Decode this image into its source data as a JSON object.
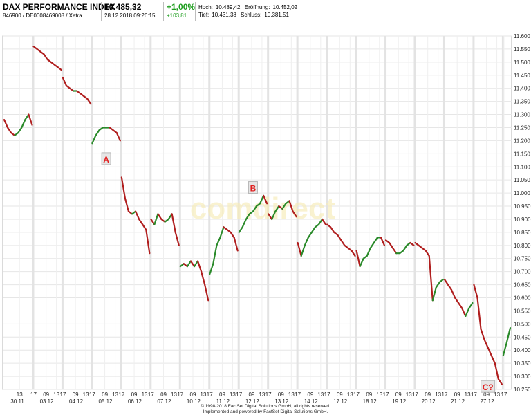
{
  "header": {
    "index_name": "DAX PERFORMANCE INDEX",
    "identifiers": "846900 / DE0008469008 / Xetra",
    "last_price": "10.485,32",
    "timestamp": "28.12.2018 09:26:15",
    "change_pct": "+1,00%",
    "change_abs": "+103,81",
    "high_label": "Hoch:",
    "high_value": "10.489,42",
    "open_label": "Eröffnung:",
    "open_value": "10.452,02",
    "low_label": "Tief:",
    "low_value": "10.431,38",
    "close_label": "Schluss:",
    "close_value": "10.381,51",
    "positive_color": "#1e9e1e"
  },
  "chart_data": {
    "type": "line",
    "title": "",
    "xlabel": "",
    "ylabel": "",
    "ylim": [
      10250,
      11600
    ],
    "y_ticks": [
      "10.250",
      "10.300",
      "10.350",
      "10.400",
      "10.450",
      "10.500",
      "10.550",
      "10.600",
      "10.650",
      "10.700",
      "10.750",
      "10.800",
      "10.850",
      "10.900",
      "10.950",
      "11.000",
      "11.050",
      "11.100",
      "11.150",
      "11.200",
      "11.250",
      "11.300",
      "11.350",
      "11.400",
      "11.450",
      "11.500",
      "11.550",
      "11.600"
    ],
    "grid": true,
    "legend": "none",
    "up_color": "#2a8a2a",
    "down_color": "#b01e1e",
    "days": [
      {
        "date": "30.11.",
        "hour_ticks": [
          "13"
        ],
        "points": [
          11280,
          11250,
          11230,
          11220,
          11230,
          11250,
          11280,
          11300,
          11260
        ]
      },
      {
        "date": "03.12.",
        "hour_ticks": [
          "17",
          "09",
          "13"
        ],
        "points": [
          11560,
          11550,
          11540,
          11530,
          11510,
          11500,
          11490,
          11480,
          11470
        ]
      },
      {
        "date": "04.12.",
        "hour_ticks": [
          "17",
          "09",
          "13"
        ],
        "points": [
          11440,
          11410,
          11400,
          11390,
          11390,
          11380,
          11370,
          11360,
          11340
        ]
      },
      {
        "date": "05.12.",
        "hour_ticks": [
          "17",
          "09",
          "13"
        ],
        "points": [
          11190,
          11220,
          11240,
          11250,
          11250,
          11250,
          11240,
          11230,
          11200
        ]
      },
      {
        "date": "06.12.",
        "hour_ticks": [
          "17",
          "09",
          "13"
        ],
        "points": [
          11060,
          10980,
          10930,
          10920,
          10930,
          10900,
          10880,
          10860,
          10770
        ]
      },
      {
        "date": "07.12.",
        "hour_ticks": [
          "17",
          "09",
          "13"
        ],
        "points": [
          10900,
          10880,
          10920,
          10900,
          10890,
          10900,
          10920,
          10850,
          10800
        ]
      },
      {
        "date": "10.12.",
        "hour_ticks": [
          "17",
          "09",
          "13"
        ],
        "points": [
          10720,
          10730,
          10720,
          10740,
          10720,
          10740,
          10700,
          10650,
          10590
        ]
      },
      {
        "date": "11.12.",
        "hour_ticks": [
          "17",
          "09",
          "13"
        ],
        "points": [
          10690,
          10730,
          10800,
          10830,
          10870,
          10860,
          10850,
          10830,
          10780
        ]
      },
      {
        "date": "12.12.",
        "hour_ticks": [
          "17",
          "09",
          "13"
        ],
        "points": [
          10850,
          10870,
          10900,
          10920,
          10930,
          10950,
          10960,
          10990,
          10960
        ]
      },
      {
        "date": "13.12.",
        "hour_ticks": [
          "17",
          "09",
          "13"
        ],
        "points": [
          10920,
          10900,
          10930,
          10950,
          10940,
          10960,
          10970,
          10930,
          10910
        ]
      },
      {
        "date": "14.12.",
        "hour_ticks": [
          "17",
          "09",
          "13"
        ],
        "points": [
          10810,
          10760,
          10800,
          10830,
          10850,
          10870,
          10880,
          10900,
          10880
        ]
      },
      {
        "date": "17.12.",
        "hour_ticks": [
          "17",
          "09",
          "13"
        ],
        "points": [
          10880,
          10870,
          10850,
          10840,
          10820,
          10800,
          10790,
          10780,
          10760
        ]
      },
      {
        "date": "18.12.",
        "hour_ticks": [
          "17",
          "09",
          "13"
        ],
        "points": [
          10780,
          10720,
          10750,
          10760,
          10790,
          10810,
          10830,
          10830,
          10800
        ]
      },
      {
        "date": "19.12.",
        "hour_ticks": [
          "17",
          "09",
          "13"
        ],
        "points": [
          10820,
          10810,
          10790,
          10770,
          10770,
          10780,
          10800,
          10810,
          10800
        ]
      },
      {
        "date": "20.12.",
        "hour_ticks": [
          "17",
          "09",
          "13"
        ],
        "points": [
          10810,
          10800,
          10790,
          10780,
          10760,
          10590,
          10640,
          10660,
          10670
        ]
      },
      {
        "date": "21.12.",
        "hour_ticks": [
          "17",
          "09",
          "13"
        ],
        "points": [
          10670,
          10650,
          10630,
          10600,
          10580,
          10560,
          10530,
          10560,
          10580
        ]
      },
      {
        "date": "27.12.",
        "hour_ticks": [
          "17",
          "09",
          "13"
        ],
        "points": [
          10650,
          10600,
          10480,
          10440,
          10410,
          10380,
          10350,
          10290,
          10270
        ]
      },
      {
        "date": "",
        "hour_ticks": [
          "17"
        ],
        "points": [
          10380,
          10430,
          10485
        ]
      }
    ],
    "annotations": [
      {
        "label": "A",
        "day": 3,
        "value": 11130
      },
      {
        "label": "B",
        "day": 8,
        "value": 11020
      },
      {
        "label": "C?",
        "day": 16,
        "value": 10260
      }
    ],
    "watermark": "comdirect"
  },
  "footer": {
    "line1": "© 1998-2018 FactSet Digital Solutions GmbH, all rights reserved.",
    "line2": "Implemented and powered by FactSet Digital Solutions GmbH."
  }
}
